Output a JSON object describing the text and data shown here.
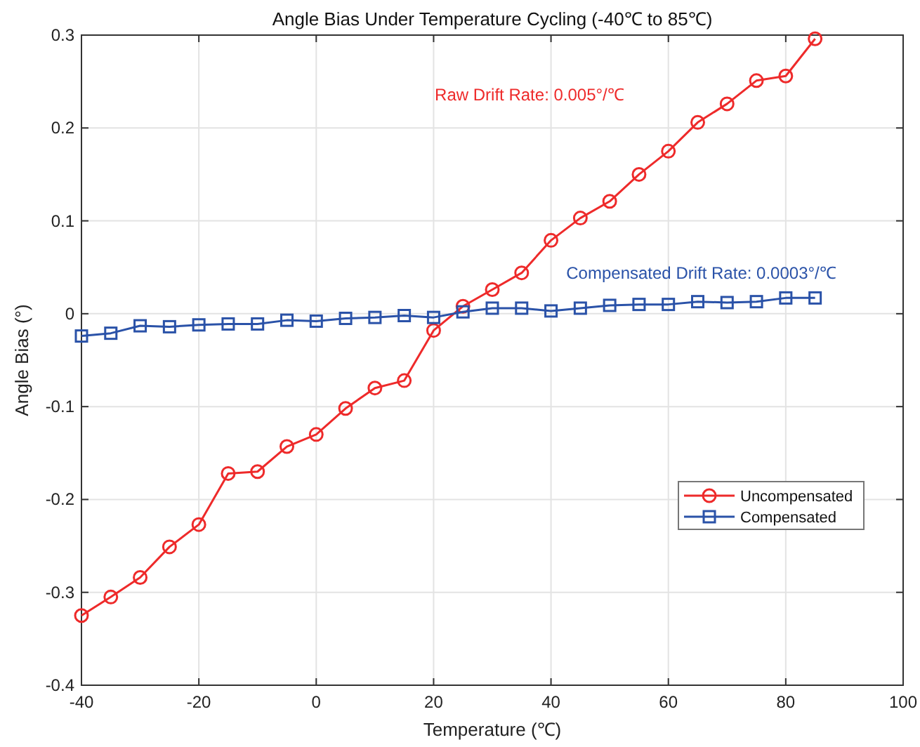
{
  "chart_data": {
    "type": "line",
    "title": "Angle Bias Under Temperature Cycling (-40℃ to 85℃)",
    "xlabel": "Temperature (℃)",
    "ylabel": "Angle Bias (°)",
    "x": [
      -40,
      -35,
      -30,
      -25,
      -20,
      -15,
      -10,
      -5,
      0,
      5,
      10,
      15,
      20,
      25,
      30,
      35,
      40,
      45,
      50,
      55,
      60,
      65,
      70,
      75,
      80,
      85
    ],
    "series": [
      {
        "name": "Uncompensated",
        "color": "#ee2a2a",
        "marker": "circle",
        "values": [
          -0.325,
          -0.305,
          -0.284,
          -0.251,
          -0.227,
          -0.172,
          -0.17,
          -0.143,
          -0.13,
          -0.102,
          -0.08,
          -0.072,
          -0.018,
          0.008,
          0.026,
          0.044,
          0.079,
          0.103,
          0.121,
          0.15,
          0.175,
          0.206,
          0.226,
          0.251,
          0.256,
          0.296
        ]
      },
      {
        "name": "Compensated",
        "color": "#2a52a8",
        "marker": "square",
        "values": [
          -0.024,
          -0.021,
          -0.013,
          -0.014,
          -0.012,
          -0.011,
          -0.011,
          -0.007,
          -0.008,
          -0.005,
          -0.004,
          -0.002,
          -0.004,
          0.002,
          0.006,
          0.006,
          0.003,
          0.006,
          0.009,
          0.01,
          0.01,
          0.013,
          0.012,
          0.013,
          0.017,
          0.017
        ]
      }
    ],
    "annotations": [
      "Raw Drift Rate: 0.005°/℃",
      "Compensated Drift Rate: 0.0003°/℃"
    ],
    "xlim": [
      -40,
      100
    ],
    "xticks": [
      -40,
      -20,
      0,
      20,
      40,
      60,
      80,
      100
    ],
    "ylim": [
      -0.4,
      0.3
    ],
    "yticks": [
      -0.4,
      -0.3,
      -0.2,
      -0.1,
      0,
      0.1,
      0.2,
      0.3
    ],
    "grid": true,
    "legend": "bottom right",
    "line_style": "solid"
  }
}
